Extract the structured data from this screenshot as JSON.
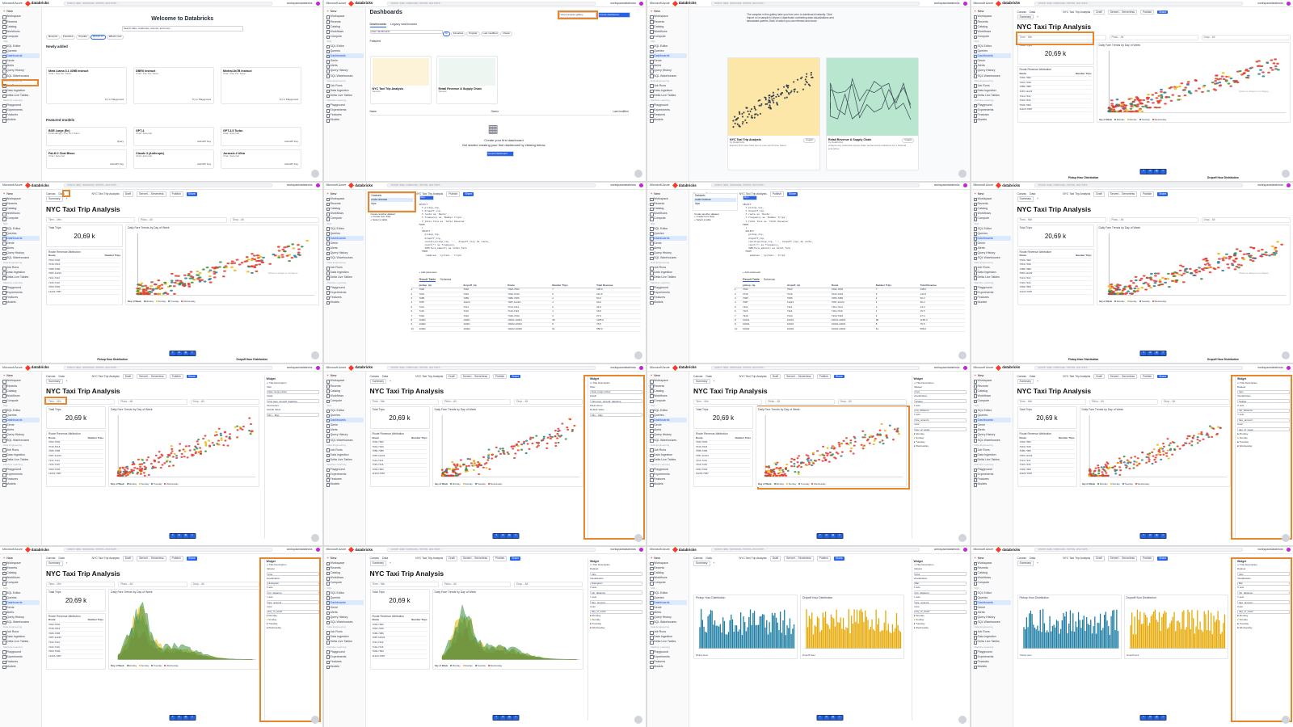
{
  "azure": "Microsoft Azure",
  "brand": "databricks",
  "search_placeholder": "Search data, notebooks, recents, and more...",
  "shortcut": "CTRL + P",
  "workspace": "workspacedatabricks",
  "new": "New",
  "sidebar": {
    "top": [
      "Workspace",
      "Recents",
      "Catalog",
      "Workflows",
      "Compute"
    ],
    "sql_header": "SQL",
    "sql": [
      "SQL Editor",
      "Queries",
      "Dashboards",
      "Genie",
      "Alerts",
      "Query History",
      "SQL Warehouses"
    ],
    "de_header": "Data Engineering",
    "de": [
      "Job Runs",
      "Data Ingestion",
      "Delta Live Tables"
    ],
    "ml_header": "Machine Learning",
    "ml": [
      "Playground",
      "Experiments",
      "Features",
      "Models"
    ]
  },
  "welcome": {
    "title": "Welcome to Databricks",
    "search": "Search data, notebooks, recents, and more...",
    "pills": [
      "Recents",
      "Favorites",
      "Popular",
      "Mosaic AI",
      "What's new"
    ],
    "newly_added": "Newly added",
    "models": [
      {
        "name": "Meta Llama 3.1 405B Instruct",
        "sub": "Chat / Pay Per Token",
        "action": "Try in Playground"
      },
      {
        "name": "DBRX Instruct",
        "sub": "Chat / Pay Per Token",
        "action": "Try in Playground"
      },
      {
        "name": "Mixtral-8x7B Instruct",
        "sub": "Chat / Pay Per Token",
        "action": "Try in Playground"
      }
    ],
    "featured": "Featured models",
    "featured_models": [
      {
        "name": "BGE Large (En)",
        "sub": "Embeddings / Pay Per Token",
        "action": "Query"
      },
      {
        "name": "GPT-4",
        "sub": "Chat / External",
        "action": "Add API Key"
      },
      {
        "name": "GPT-3.5 Turbo",
        "sub": "Chat / External",
        "action": "Add API Key"
      },
      {
        "name": "PaLM 2 Chat Bison",
        "sub": "Chat / External",
        "action": "Add API Key"
      },
      {
        "name": "Claude 3 (Anthropic)",
        "sub": "Chat / External",
        "action": "Add API Key"
      },
      {
        "name": "Jurassic-2 Ultra",
        "sub": "Chat / External",
        "action": "Add API Key"
      }
    ]
  },
  "dashboards": {
    "title": "Dashboards",
    "view_samples": "View samples gallery",
    "create": "Create dashboard",
    "tabs": [
      "Dashboards",
      "Legacy dashboards"
    ],
    "filter": "Filter dashboards",
    "filter_pills": [
      "All",
      "Favorites",
      "Popular",
      "Last modified",
      "Owner"
    ],
    "featured": "Featured",
    "samples": [
      {
        "name": "NYC Taxi Trip Analysis",
        "sub": "Sample"
      },
      {
        "name": "Retail Revenue & Supply Chain",
        "sub": "Sample"
      }
    ],
    "cols": [
      "Name",
      "Owner",
      "Last modified"
    ],
    "empty_title": "Create your first dashboard",
    "empty_sub": "Get started creating your first dashboard by clicking below.",
    "empty_btn": "Create Dashboard"
  },
  "gallery": {
    "intro": "The samples in this gallery take you from zero to dashboard instantly. Click Import on a sample to import a dashboard containing data visualizations and associated queries. Both of which you can rebrand and reuse.",
    "cards": [
      {
        "name": "NYC Taxi Trip Analysis",
        "by": "by Databricks",
        "desc": "Explore NYC taxi rides over a one-month time frame.",
        "btn": "Import"
      },
      {
        "name": "Retail Revenue & Supply Chain",
        "by": "by Databricks",
        "desc": "Analyze key retail and supply chain performance indicators for a fictional enterprise.",
        "btn": "Import"
      }
    ]
  },
  "dash": {
    "title": "NYC Taxi Trip Analysis",
    "tabs": [
      "Canvas",
      "Data"
    ],
    "page_tab": "Summary",
    "draft": "Draft",
    "publish": "Publish",
    "share": "Share",
    "serverless": "Serverl... Serverless",
    "filters": [
      {
        "label": "Time...",
        "a": "Min",
        "b": "Max"
      },
      {
        "label": "Picku...",
        "a": "All"
      },
      {
        "label": "Drop...",
        "a": "All"
      }
    ],
    "kpi_label": "Total Trips",
    "kpi_value": "20,69 k",
    "route_title": "Route Revenue Attribution",
    "route_cols": [
      "Route",
      "Number Trips"
    ],
    "routes": [
      "7002-7002",
      "7016-7016",
      "7086-7086",
      "7087-11223",
      "7114-7114",
      "7116-7116",
      "7003-7003",
      "11223-7087"
    ],
    "fare_title": "Daily Fare Trends by Day of Week",
    "fare_y": "Fare Amount (USD)",
    "fare_x": "Trip Distance (miles)",
    "hist_x": "trip_distance",
    "hist_y": "fare_amount",
    "legend_label": "Day of Week",
    "days": [
      "Monday",
      "Sunday",
      "Tuesday",
      "Wednesday"
    ],
    "pickup_title": "Pickup Hour Distribution",
    "dropoff_title": "Dropoff Hour Distribution",
    "pickup_x": "Pickup Hour",
    "dropoff_x": "Dropoff Hour",
    "y_count": "Number of Rides",
    "hint": "Select a widget to configure"
  },
  "datapane": {
    "header": "Datasets",
    "items": [
      "route revenue",
      "trips"
    ],
    "create_label": "Create another dataset",
    "create_sql": "Create from SQL",
    "select_table": "Select a table",
    "run": "Run",
    "add_param": "Add parameter",
    "result_tabs": [
      "Result Table",
      "Schema"
    ],
    "cols": [
      "pickup_zip",
      "dropoff_zip",
      "Route",
      "Number Trips",
      "Total Revenue"
    ],
    "rows": [
      [
        "7002",
        "7002",
        "7002-7002",
        "7",
        "138.0"
      ],
      [
        "7016",
        "7016",
        "7016-7016",
        "5",
        "142.5"
      ],
      [
        "7086",
        "7086",
        "7086-7086",
        "2",
        "50.0"
      ],
      [
        "7087",
        "11223",
        "7087-11223",
        "1",
        "60.0"
      ],
      [
        "7114",
        "7114",
        "7114-7114",
        "2",
        "44.0"
      ],
      [
        "7116",
        "7116",
        "7116-7116",
        "1",
        "15.5"
      ],
      [
        "7310",
        "7310",
        "7310-7310",
        "2",
        "27.0"
      ],
      [
        "10001",
        "10001",
        "10001-10001",
        "98",
        "1185.0"
      ],
      [
        "10002",
        "10001",
        "10002-10001",
        "8",
        "75.5"
      ],
      [
        "10002",
        "10002",
        "10002-10002",
        "61",
        "558.0"
      ]
    ]
  },
  "sql_lines": [
    "SELECT",
    "  T.pickup_zip,",
    "  T.dropoff_zip,",
    "  T.route as 'Route',",
    "  T.frequency as 'Number Trips',",
    "  T.total_fare as 'Total Revenue'",
    "FROM",
    "  (",
    "  SELECT",
    "    pickup_zip,",
    "    dropoff_zip,",
    "    concat(pickup_zip, '-', dropoff_zip) AS route,",
    "    count(*) as frequency,",
    "    SUM(fare_amount) as total_fare",
    "  FROM",
    "    `samples`.`nyctaxi`.`trips`"
  ],
  "widget_panel": {
    "widget": "Widget",
    "title": "Title",
    "description": "Description",
    "filter": "Filter",
    "filter_type": "Date range picker",
    "fields": "Fields",
    "field_val": "trips.tpep_dropoff_datetime",
    "parameters": "Parameters",
    "default": "Default Value",
    "min": "Min",
    "max": "Max",
    "dataset": "Dataset",
    "dataset_val": "trips",
    "show_more": "Show More",
    "visualization": "Visualization",
    "viz_scatter": "Scatter",
    "viz_hist": "Histogram",
    "viz_bar": "Bar",
    "x_axis": "X axis",
    "x_field": "trip_distance",
    "y_axis": "Y axis",
    "y_field": "fare_amount",
    "color": "Color",
    "color_field": "day_of_week",
    "tooltip": "Tooltip",
    "labels": "Labels",
    "create_btn": "Create visualization",
    "ask_placeholder": "Ask the assistant to create or edit..."
  },
  "colors": {
    "accent": "#e8862e",
    "monday": "#3a8f3e",
    "sunday": "#e6b800",
    "tuesday": "#2b7a9b",
    "wednesday": "#e23b2e",
    "pickup": "#1a7ca3",
    "dropoff": "#e6a800"
  }
}
